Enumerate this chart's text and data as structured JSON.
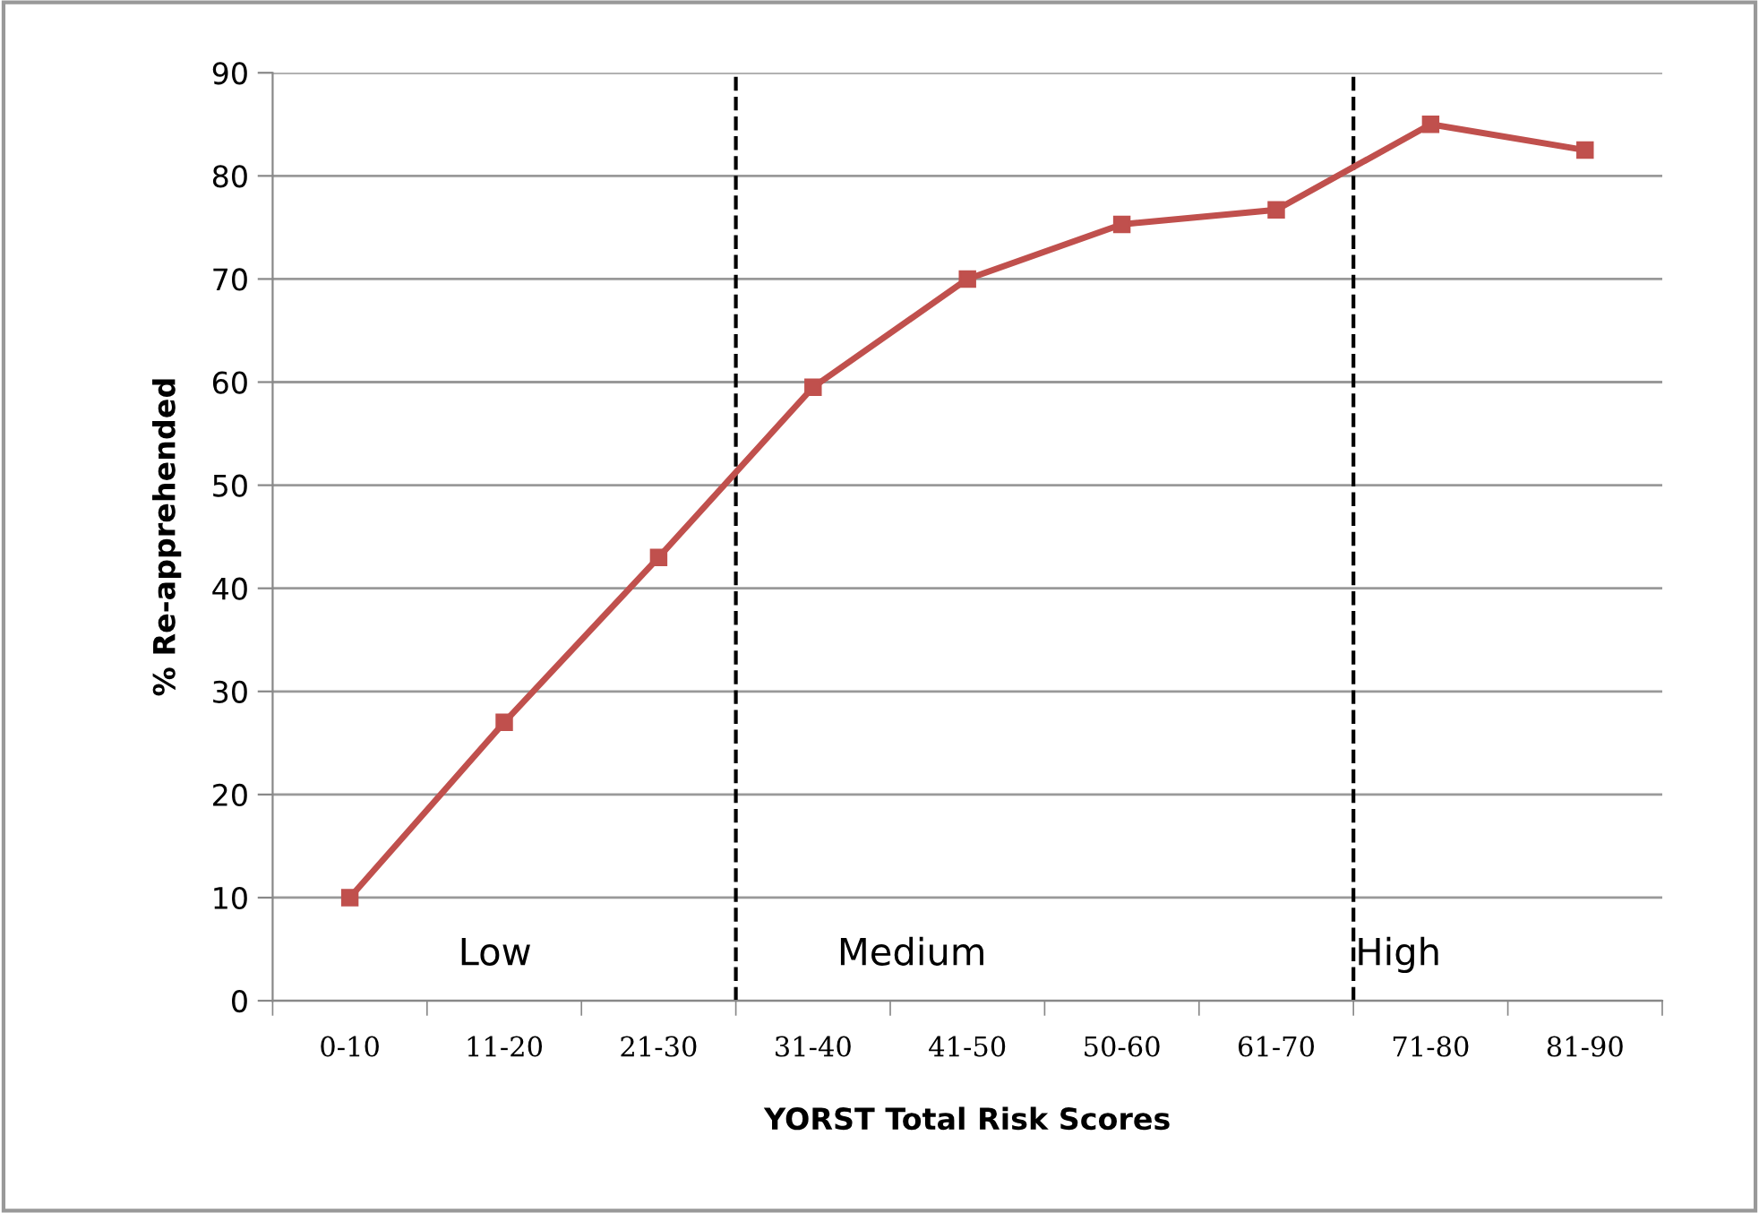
{
  "chart_data": {
    "type": "line",
    "xlabel": "YORST Total Risk Scores",
    "ylabel": "% Re-apprehended",
    "categories": [
      "0-10",
      "11-20",
      "21-30",
      "31-40",
      "41-50",
      "50-60",
      "61-70",
      "71-80",
      "81-90"
    ],
    "series": [
      {
        "color": "#c0504d",
        "values": [
          10,
          27,
          43,
          59.5,
          70,
          75.3,
          76.7,
          85,
          82.5
        ]
      }
    ],
    "ylim": [
      0,
      90
    ],
    "yticks": [
      0,
      10,
      20,
      30,
      40,
      50,
      60,
      70,
      80,
      90
    ],
    "grid": "y",
    "marker": "square",
    "line_style": "solid",
    "annotations": [
      "Low",
      "Medium",
      "High"
    ]
  }
}
